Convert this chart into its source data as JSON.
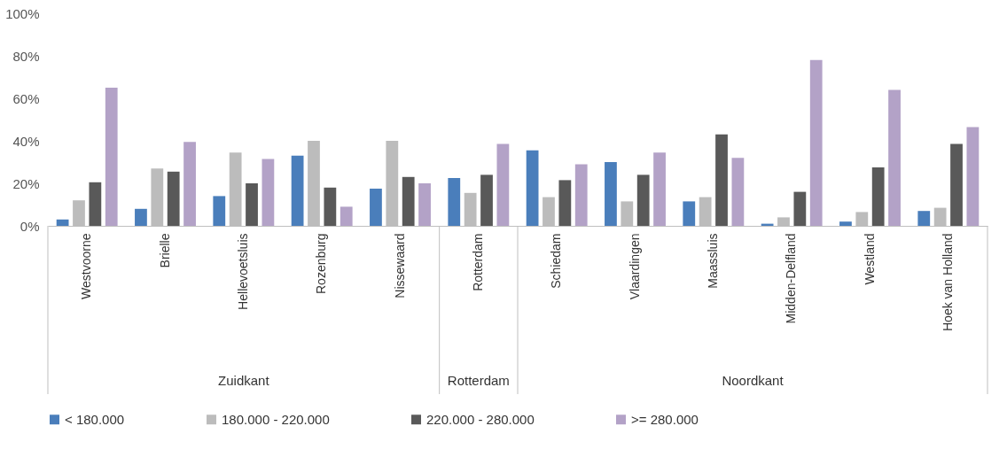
{
  "chart_data": {
    "type": "bar",
    "categories": [
      "Westvoorne",
      "Brielle",
      "Hellevoetsluis",
      "Rozenburg",
      "Nissewaard",
      "Rotterdam",
      "Schiedam",
      "Vlaardingen",
      "Maassluis",
      "Midden-Delfland",
      "Westland",
      "Hoek van Holland"
    ],
    "series": [
      {
        "name": "< 180.000",
        "color": "#4a7ebb",
        "values": [
          3,
          8,
          14,
          33,
          17.5,
          22.5,
          35.5,
          30,
          11.5,
          1,
          2,
          7
        ]
      },
      {
        "name": "180.000 - 220.000",
        "color": "#bcbcbc",
        "values": [
          12,
          27,
          34.5,
          40,
          40,
          15.5,
          13.5,
          11.5,
          13.5,
          4,
          6.5,
          8.5
        ]
      },
      {
        "name": "220.000 - 280.000",
        "color": "#595959",
        "values": [
          20.5,
          25.5,
          20,
          18,
          23,
          24,
          21.5,
          24,
          43,
          16,
          27.5,
          38.5
        ]
      },
      {
        "name": ">= 280.000",
        "color": "#b3a2c7",
        "values": [
          65,
          39.5,
          31.5,
          9,
          20,
          38.5,
          29,
          34.5,
          32,
          78,
          64,
          46.5
        ]
      }
    ],
    "ylim": [
      0,
      100
    ],
    "yticks": [
      {
        "value": 0,
        "label": "0%"
      },
      {
        "value": 20,
        "label": "20%"
      },
      {
        "value": 40,
        "label": "40%"
      },
      {
        "value": 60,
        "label": "60%"
      },
      {
        "value": 80,
        "label": "80%"
      },
      {
        "value": 100,
        "label": "100%"
      }
    ],
    "annotations": [
      "Zuidkant",
      "Rotterdam",
      "Noordkant"
    ],
    "grid": false,
    "legend": "bottom"
  }
}
